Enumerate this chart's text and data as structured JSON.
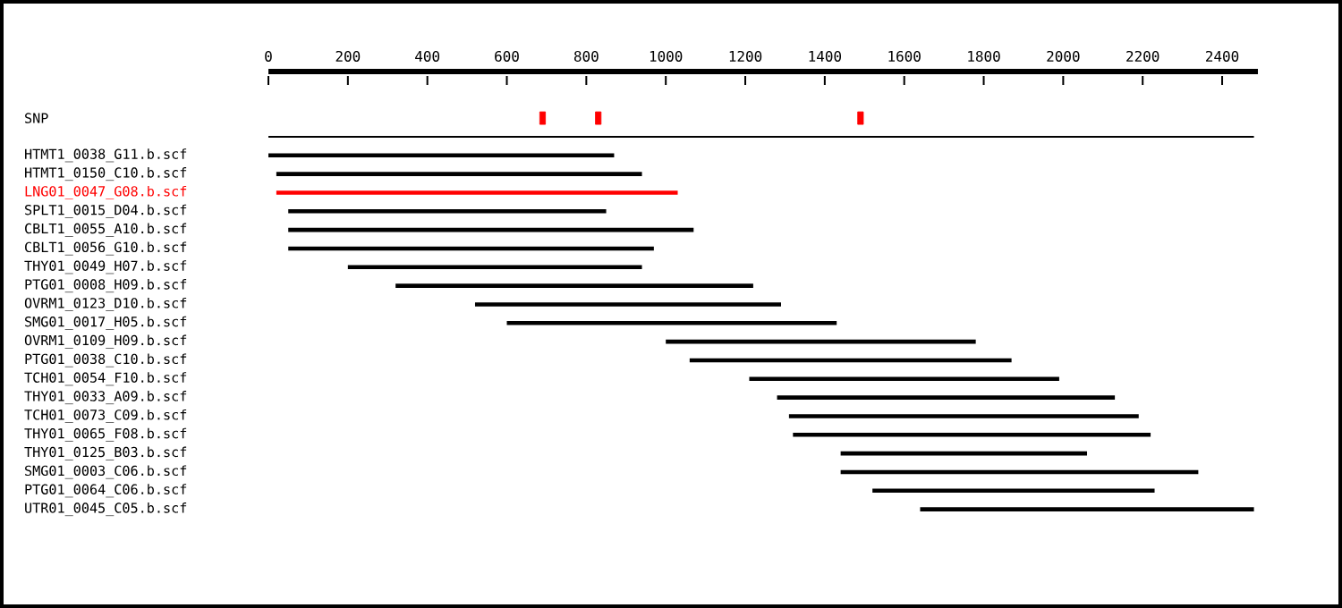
{
  "chart_data": {
    "type": "bar",
    "orientation": "horizontal",
    "categories": [
      "SNP",
      null,
      "HTMT1_0038_G11.b.scf",
      "HTMT1_0150_C10.b.scf",
      "LNG01_0047_G08.b.scf",
      "SPLT1_0015_D04.b.scf",
      "CBLT1_0055_A10.b.scf",
      "CBLT1_0056_G10.b.scf",
      "THY01_0049_H07.b.scf",
      "PTG01_0008_H09.b.scf",
      "OVRM1_0123_D10.b.scf",
      "SMG01_0017_H05.b.scf",
      "OVRM1_0109_H09.b.scf",
      "PTG01_0038_C10.b.scf",
      "TCH01_0054_F10.b.scf",
      "THY01_0033_A09.b.scf",
      "TCH01_0073_C09.b.scf",
      "THY01_0065_F08.b.scf",
      "THY01_0125_B03.b.scf",
      "SMG01_0003_C06.b.scf",
      "PTG01_0064_C06.b.scf",
      "UTR01_0045_C05.b.scf"
    ],
    "series": [
      {
        "base": [
          null,
          0,
          0,
          20,
          20,
          50,
          50,
          50,
          200,
          320,
          520,
          600,
          1000,
          1060,
          1210,
          1280,
          1310,
          1320,
          1440,
          1440,
          1520,
          1640
        ],
        "values": [
          null,
          2480,
          870,
          920,
          1010,
          800,
          1020,
          920,
          740,
          900,
          770,
          830,
          780,
          810,
          780,
          850,
          880,
          900,
          620,
          900,
          710,
          840
        ],
        "colors": [
          "#000000",
          "#000000",
          "#000000",
          "#000000",
          "#ff0000",
          "#000000",
          "#000000",
          "#000000",
          "#000000",
          "#000000",
          "#000000",
          "#000000",
          "#000000",
          "#000000",
          "#000000",
          "#000000",
          "#000000",
          "#000000",
          "#000000",
          "#000000",
          "#000000",
          "#000000"
        ]
      },
      {
        "type": "scatter",
        "x": [
          "SNP",
          "SNP",
          "SNP"
        ],
        "values": [
          690,
          830,
          1490
        ],
        "color": "#ff0000"
      }
    ],
    "xlim": [
      0,
      2490
    ],
    "xticks": [
      0,
      200,
      400,
      600,
      800,
      1000,
      1200,
      1400,
      1600,
      1800,
      2000,
      2200,
      2400
    ],
    "grid": false
  }
}
